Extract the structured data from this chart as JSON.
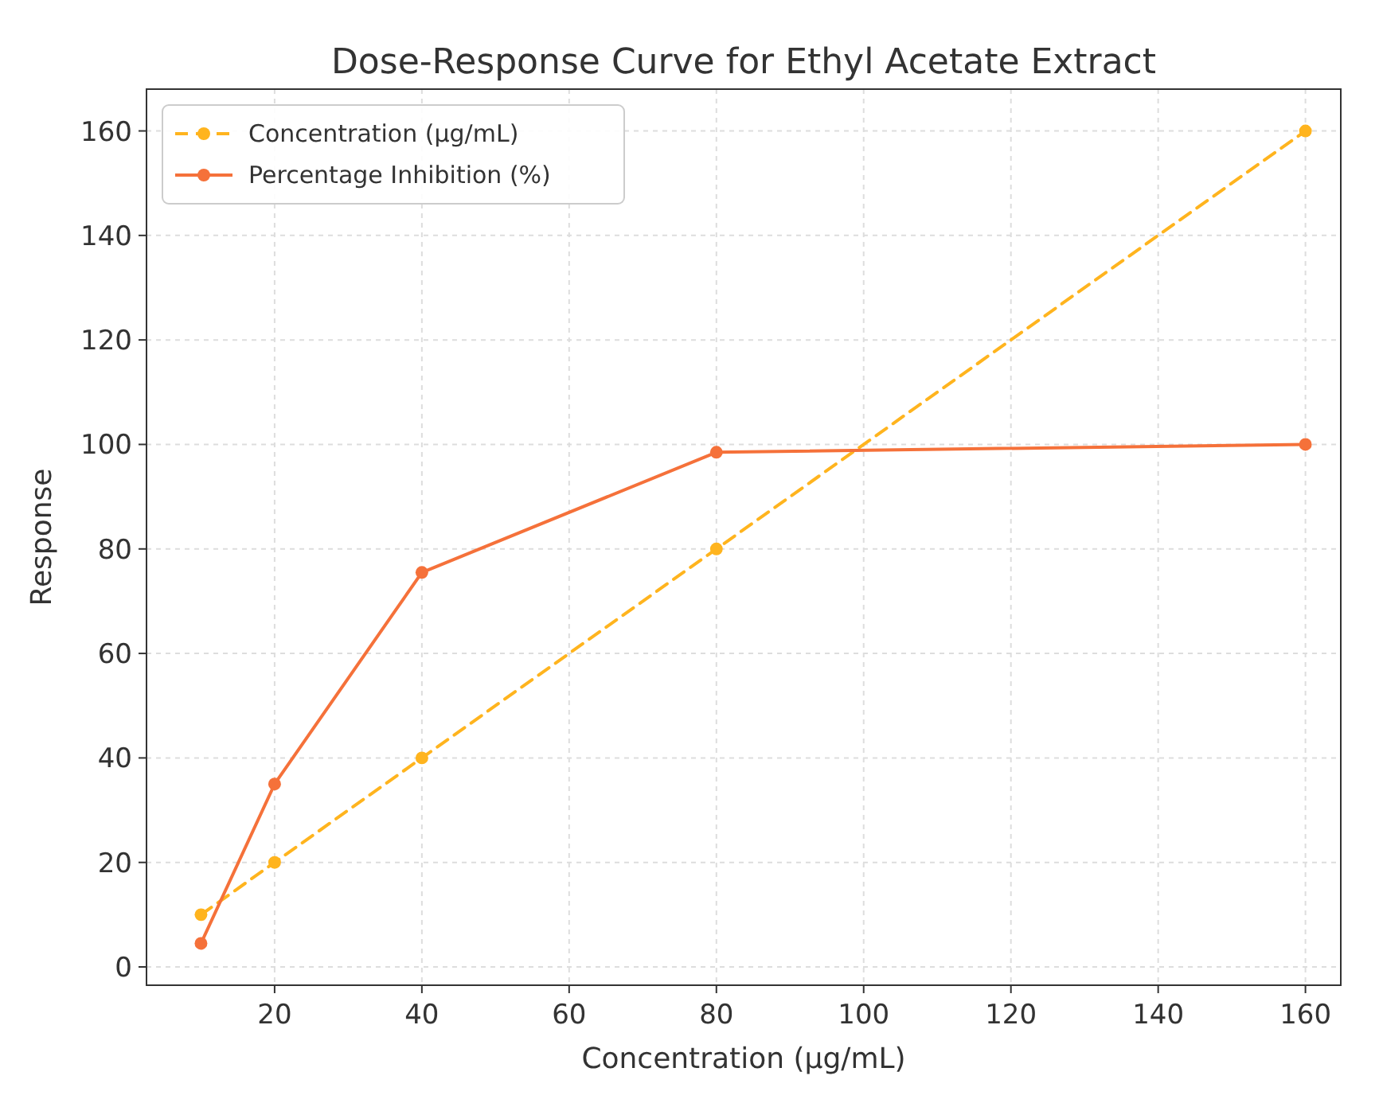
{
  "chart_data": {
    "type": "line",
    "title": "Dose-Response Curve for Ethyl Acetate Extract",
    "xlabel": "Concentration (µg/mL)",
    "ylabel": "Response",
    "x": [
      10,
      20,
      40,
      80,
      160
    ],
    "series": [
      {
        "name": "Concentration (µg/mL)",
        "color": "#ffb41e",
        "values": [
          10,
          20,
          40,
          80,
          160
        ],
        "line_style": "dashed"
      },
      {
        "name": "Percentage Inhibition (%)",
        "color": "#f5713a",
        "values": [
          4.5,
          35,
          75.5,
          98.5,
          100
        ],
        "line_style": "solid"
      }
    ],
    "xlim": [
      2.6,
      164.8
    ],
    "xticks": [
      20,
      40,
      60,
      80,
      100,
      120,
      140,
      160
    ],
    "ylim": [
      -3.5,
      168
    ],
    "yticks": [
      0,
      20,
      40,
      60,
      80,
      100,
      120,
      140,
      160
    ],
    "grid": true,
    "legend": "top left",
    "marker": "circle"
  }
}
